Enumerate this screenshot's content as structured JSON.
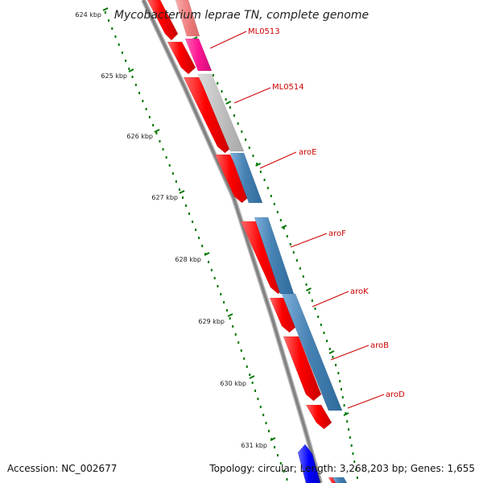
{
  "title": "Mycobacterium leprae TN, complete genome",
  "footer": {
    "accession": "Accession: NC_002677",
    "topology": "Topology: circular; Length: 3,268,203 bp; Genes: 1,655"
  },
  "axis": {
    "unit": "kbp",
    "ticks": [
      "624 kbp",
      "625 kbp",
      "626 kbp",
      "627 kbp",
      "628 kbp",
      "629 kbp",
      "630 kbp",
      "631 kbp"
    ]
  },
  "gene_labels": [
    "ML0513",
    "ML0514",
    "aroE",
    "aroF",
    "aroK",
    "aroB",
    "aroD"
  ],
  "colors": {
    "reverse_strand_gene": "#ff0000",
    "forward_strand_gene": "#4682b4",
    "pink_gene": "#ff1493",
    "light_red_gene": "#f08080",
    "grey_gene": "#c0c0c0",
    "blue_gene": "#0000ff",
    "backbone": "#808080",
    "tick_mark": "#007700",
    "label_text": "#cc0000"
  }
}
